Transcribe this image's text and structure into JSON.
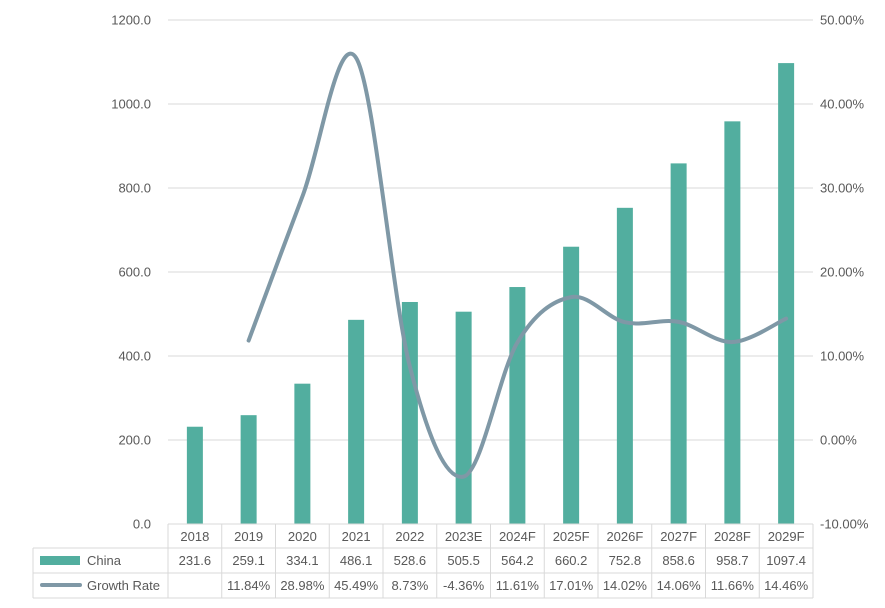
{
  "chart_data": {
    "type": "bar",
    "categories": [
      "2018",
      "2019",
      "2020",
      "2021",
      "2022",
      "2023E",
      "2024F",
      "2025F",
      "2026F",
      "2027F",
      "2028F",
      "2029F"
    ],
    "series": [
      {
        "name": "China",
        "kind": "bar",
        "axis": "left",
        "values": [
          231.6,
          259.1,
          334.1,
          486.1,
          528.6,
          505.5,
          564.2,
          660.2,
          752.8,
          858.6,
          958.7,
          1097.4
        ],
        "labels": [
          "231.6",
          "259.1",
          "334.1",
          "486.1",
          "528.6",
          "505.5",
          "564.2",
          "660.2",
          "752.8",
          "858.6",
          "958.7",
          "1097.4"
        ]
      },
      {
        "name": "Growth Rate",
        "kind": "line",
        "axis": "right",
        "values": [
          null,
          11.84,
          28.98,
          45.49,
          8.73,
          -4.36,
          11.61,
          17.01,
          14.02,
          14.06,
          11.66,
          14.46
        ],
        "labels": [
          "",
          "11.84%",
          "28.98%",
          "45.49%",
          "8.73%",
          "-4.36%",
          "11.61%",
          "17.01%",
          "14.02%",
          "14.06%",
          "11.66%",
          "14.46%"
        ]
      }
    ],
    "y_left": {
      "min": 0,
      "max": 1200,
      "step": 200,
      "ticks": [
        "0.0",
        "200.0",
        "400.0",
        "600.0",
        "800.0",
        "1000.0",
        "1200.0"
      ]
    },
    "y_right": {
      "min": -10,
      "max": 50,
      "step": 10,
      "ticks": [
        "-10.00%",
        "0.00%",
        "10.00%",
        "20.00%",
        "30.00%",
        "40.00%",
        "50.00%"
      ]
    },
    "grid": true,
    "legend": "data-table",
    "colors": {
      "bar": "#52ae9f",
      "line": "#7f98a6",
      "grid": "#d9d9d9",
      "text": "#595959"
    }
  }
}
